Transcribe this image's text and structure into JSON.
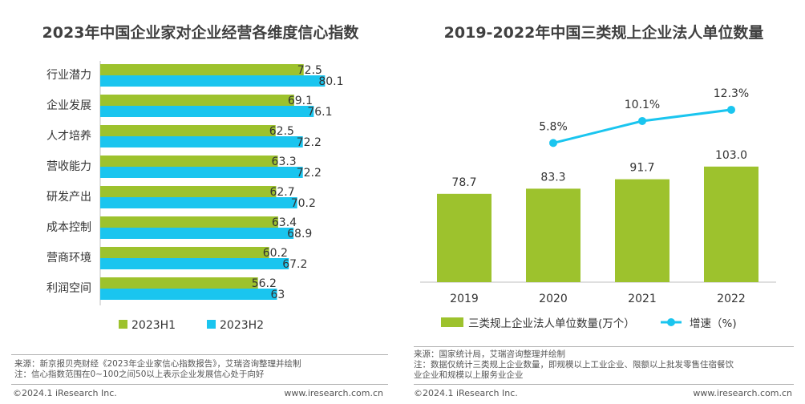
{
  "left_panel": {
    "title": "2023年中国企业家对企业经营各维度信心指数",
    "source": "来源：新京报贝壳财经《2023年企业家信心指数报告》，艾瑞咨询整理并绘制",
    "note": "注：信心指数范围在0~100之间50以上表示企业发展信心处于向好",
    "copyright": "©2024.1 iResearch Inc.",
    "website": "www.iresearch.com.cn"
  },
  "right_panel": {
    "title": "2019-2022年中国三类规上企业法人单位数量",
    "source": "来源：国家统计局，艾瑞咨询整理并绘制",
    "note_line1": "注：数据仅统计三类规上企业数量，即规模以上工业企业、限额以上批发零售住宿餐饮",
    "note_line2": "业企业和规模以上服务业企业",
    "copyright": "©2024.1 iResearch Inc.",
    "website": "www.iresearch.com.cn"
  },
  "colors": {
    "green": "#9dc22d",
    "blue": "#1ac5ef",
    "axis": "#bfbfbf",
    "text": "#333333"
  },
  "chart_data": [
    {
      "type": "bar",
      "orientation": "horizontal",
      "title": "2023年中国企业家对企业经营各维度信心指数",
      "categories": [
        "行业潜力",
        "企业发展",
        "人才培养",
        "营收能力",
        "研发产出",
        "成本控制",
        "营商环境",
        "利润空间"
      ],
      "series": [
        {
          "name": "2023H1",
          "color": "#9dc22d",
          "values": [
            72.5,
            69.1,
            62.5,
            63.3,
            62.7,
            63.4,
            60.2,
            56.2
          ]
        },
        {
          "name": "2023H2",
          "color": "#1ac5ef",
          "values": [
            80.1,
            76.1,
            72.2,
            72.2,
            70.2,
            68.9,
            67.2,
            63
          ]
        }
      ],
      "xlim": [
        0,
        100
      ],
      "grid": false,
      "legend_position": "bottom"
    },
    {
      "type": "bar",
      "title": "2019-2022年中国三类规上企业法人单位数量",
      "categories": [
        "2019",
        "2020",
        "2021",
        "2022"
      ],
      "series": [
        {
          "name": "三类规上企业法人单位数量(万个）",
          "type": "bar",
          "color": "#9dc22d",
          "values": [
            78.7,
            83.3,
            91.7,
            103.0
          ],
          "labels": [
            "78.7",
            "83.3",
            "91.7",
            "103.0"
          ]
        },
        {
          "name": "增速（%)",
          "type": "line",
          "color": "#1ac5ef",
          "values": [
            null,
            5.8,
            10.1,
            12.3
          ],
          "labels": [
            "",
            "5.8%",
            "10.1%",
            "12.3%"
          ]
        }
      ],
      "ylim": [
        0,
        140
      ],
      "grid": false,
      "legend_position": "bottom"
    }
  ]
}
